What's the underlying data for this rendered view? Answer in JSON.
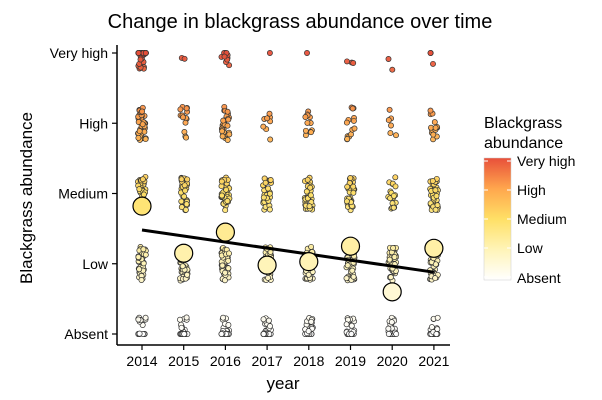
{
  "chart_data": {
    "type": "scatter",
    "title": "Change in blackgrass abundance over time",
    "xlabel": "year",
    "ylabel": "Blackgrass abundance",
    "x_categories": [
      "2014",
      "2015",
      "2016",
      "2017",
      "2018",
      "2019",
      "2020",
      "2021"
    ],
    "y_levels": [
      "Absent",
      "Low",
      "Medium",
      "High",
      "Very high"
    ],
    "ylim": [
      0,
      4
    ],
    "means": [
      {
        "year": "2014",
        "value": 1.82
      },
      {
        "year": "2015",
        "value": 1.15
      },
      {
        "year": "2016",
        "value": 1.45
      },
      {
        "year": "2017",
        "value": 0.98
      },
      {
        "year": "2018",
        "value": 1.03
      },
      {
        "year": "2019",
        "value": 1.25
      },
      {
        "year": "2020",
        "value": 0.6
      },
      {
        "year": "2021",
        "value": 1.22
      }
    ],
    "trend_line": {
      "start": {
        "year": "2014",
        "value": 1.48
      },
      "end": {
        "year": "2021",
        "value": 0.88
      }
    },
    "jitter_counts": [
      [
        18,
        40,
        45,
        42,
        30
      ],
      [
        30,
        48,
        36,
        14,
        2
      ],
      [
        26,
        46,
        42,
        30,
        10
      ],
      [
        34,
        46,
        30,
        8,
        1
      ],
      [
        30,
        48,
        32,
        12,
        1
      ],
      [
        26,
        48,
        36,
        14,
        3
      ],
      [
        40,
        40,
        18,
        6,
        2
      ],
      [
        26,
        46,
        36,
        14,
        3
      ]
    ],
    "legend": {
      "title_lines": [
        "Blackgrass",
        "abundance"
      ],
      "labels": [
        "Very high",
        "High",
        "Medium",
        "Low",
        "Absent"
      ]
    },
    "colors": {
      "absent": "#ffffff",
      "low": "#fff4b8",
      "medium": "#ffe066",
      "high": "#ffa64d",
      "very_high": "#e8503a"
    }
  }
}
